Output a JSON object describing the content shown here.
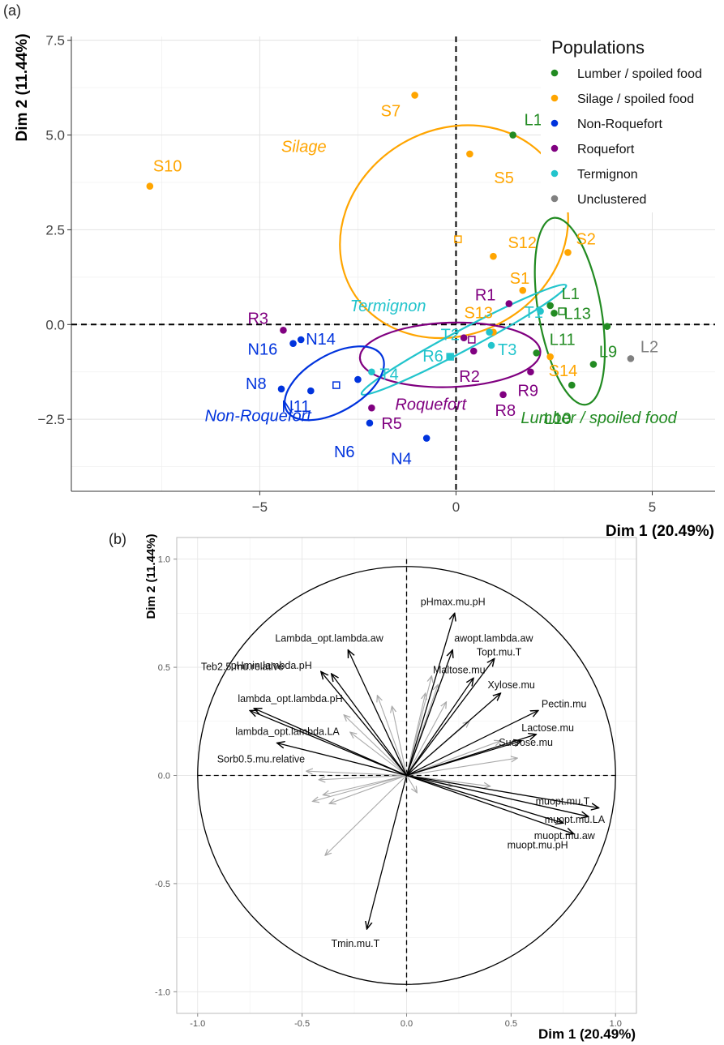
{
  "figure": {
    "label_a": "(a)",
    "label_b": "(b)"
  },
  "chart_data": [
    {
      "type": "scatter",
      "panel": "(a)",
      "xlabel": "Dim 1 (20.49%)",
      "ylabel": "Dim 2 (11.44%)",
      "xlim": [
        -9.8,
        6.6
      ],
      "ylim": [
        -4.4,
        7.6
      ],
      "xticks": [
        -5,
        0,
        5
      ],
      "xtick_labels": [
        "−5",
        "0",
        "5"
      ],
      "yticks": [
        -2.5,
        0.0,
        2.5,
        5.0,
        7.5
      ],
      "ytick_labels": [
        "−2.5",
        "0.0",
        "2.5",
        "5.0",
        "7.5"
      ],
      "grid": true,
      "legend": {
        "title": "Populations",
        "placement": "top-right",
        "entries": [
          {
            "label": "Lumber / spoiled food",
            "color": "#228B22"
          },
          {
            "label": "Silage / spoiled food",
            "color": "#FFA500"
          },
          {
            "label": "Non-Roquefort",
            "color": "#0033DD"
          },
          {
            "label": "Roquefort",
            "color": "#800080"
          },
          {
            "label": "Termignon",
            "color": "#22C4CC"
          },
          {
            "label": "Unclustered",
            "color": "#808080"
          }
        ]
      },
      "series": [
        {
          "name": "Lumber / spoiled food",
          "color": "#228B22",
          "points": [
            {
              "label": "L1",
              "x": 1.45,
              "y": 5.0
            },
            {
              "label": "L1",
              "x": 2.4,
              "y": 0.5
            },
            {
              "label": "L13",
              "x": 2.5,
              "y": 0.3
            },
            {
              "label": "L9",
              "x": 3.85,
              "y": -0.05
            },
            {
              "label": "L11",
              "x": 2.05,
              "y": -0.75
            },
            {
              "label": "",
              "x": 3.5,
              "y": -1.05
            },
            {
              "label": "L10",
              "x": 2.95,
              "y": -1.6
            }
          ]
        },
        {
          "name": "Silage / spoiled food",
          "color": "#FFA500",
          "points": [
            {
              "label": "S7",
              "x": -1.05,
              "y": 6.05
            },
            {
              "label": "S5",
              "x": 0.35,
              "y": 4.5
            },
            {
              "label": "S10",
              "x": -7.8,
              "y": 3.65
            },
            {
              "label": "S12",
              "x": 0.95,
              "y": 1.8
            },
            {
              "label": "S2",
              "x": 2.85,
              "y": 1.9
            },
            {
              "label": "S1",
              "x": 1.7,
              "y": 0.9
            },
            {
              "label": "S13",
              "x": 0.95,
              "y": -0.2
            },
            {
              "label": "S14",
              "x": 2.4,
              "y": -0.85
            }
          ]
        },
        {
          "name": "Non-Roquefort",
          "color": "#0033DD",
          "points": [
            {
              "label": "N14",
              "x": -3.95,
              "y": -0.4
            },
            {
              "label": "N16",
              "x": -4.15,
              "y": -0.5
            },
            {
              "label": "",
              "x": -2.5,
              "y": -1.45
            },
            {
              "label": "N8",
              "x": -4.45,
              "y": -1.7
            },
            {
              "label": "N11",
              "x": -3.7,
              "y": -1.75
            },
            {
              "label": "N6",
              "x": -2.2,
              "y": -2.6
            },
            {
              "label": "N4",
              "x": -0.75,
              "y": -3.0
            }
          ]
        },
        {
          "name": "Roquefort",
          "color": "#800080",
          "points": [
            {
              "label": "R3",
              "x": -4.4,
              "y": -0.15
            },
            {
              "label": "R1",
              "x": 1.35,
              "y": 0.55
            },
            {
              "label": "",
              "x": 0.2,
              "y": -0.35
            },
            {
              "label": "R2",
              "x": 0.45,
              "y": -0.7
            },
            {
              "label": "R9",
              "x": 1.9,
              "y": -1.25
            },
            {
              "label": "R8",
              "x": 1.2,
              "y": -1.85
            },
            {
              "label": "R5",
              "x": -2.15,
              "y": -2.2
            }
          ]
        },
        {
          "name": "Termignon",
          "color": "#22C4CC",
          "points": [
            {
              "label": "T1",
              "x": 2.15,
              "y": 0.35
            },
            {
              "label": "T2",
              "x": 0.85,
              "y": -0.2
            },
            {
              "label": "T3",
              "x": 0.9,
              "y": -0.55
            },
            {
              "label": "R6",
              "x": -0.15,
              "y": -0.85
            },
            {
              "label": "T4",
              "x": -2.15,
              "y": -1.25
            }
          ]
        },
        {
          "name": "Unclustered",
          "color": "#808080",
          "points": [
            {
              "label": "L2",
              "x": 4.45,
              "y": -0.9
            }
          ]
        }
      ],
      "centroids": [
        {
          "group": "Silage / spoiled food",
          "x": 0.05,
          "y": 2.25
        },
        {
          "group": "Lumber / spoiled food",
          "x": 2.7,
          "y": 0.35
        },
        {
          "group": "Roquefort",
          "x": 0.4,
          "y": -0.4
        },
        {
          "group": "Termignon",
          "x": -0.15,
          "y": -0.85
        },
        {
          "group": "Non-Roquefort",
          "x": -3.05,
          "y": -1.6
        }
      ],
      "ellipses": [
        {
          "label": "Silage",
          "color": "#FFA500",
          "cx": -0.05,
          "cy": 2.45,
          "rx": 3.0,
          "ry": 2.7,
          "angle": -30
        },
        {
          "label": "Lumber / spoiled food",
          "color": "#228B22",
          "cx": 2.9,
          "cy": 0.35,
          "rx": 0.8,
          "ry": 2.5,
          "angle": -10
        },
        {
          "label": "Roquefort",
          "color": "#800080",
          "cx": -0.15,
          "cy": -0.8,
          "rx": 2.3,
          "ry": 0.85,
          "angle": -2
        },
        {
          "label": "Termignon",
          "color": "#22C4CC",
          "cx": 0.2,
          "cy": -0.4,
          "rx": 2.95,
          "ry": 0.27,
          "angle": -28
        },
        {
          "label": "Non-Roquefort",
          "color": "#0033DD",
          "cx": -3.1,
          "cy": -1.55,
          "rx": 1.4,
          "ry": 0.75,
          "angle": -30
        }
      ],
      "group_labels": [
        {
          "text": "Silage",
          "color": "#FFA500",
          "x": -4.45,
          "y": 4.55
        },
        {
          "text": "Termignon",
          "color": "#22C4CC",
          "x": -2.7,
          "y": 0.35
        },
        {
          "text": "Roquefort",
          "color": "#800080",
          "x": -1.55,
          "y": -2.25
        },
        {
          "text": "Non-Roquefort",
          "color": "#0033DD",
          "x": -6.4,
          "y": -2.55
        },
        {
          "text": "Lumber / spoiled food",
          "color": "#228B22",
          "x": 1.65,
          "y": -2.6
        }
      ]
    },
    {
      "type": "correlation-circle",
      "panel": "(b)",
      "xlabel": "Dim 1 (20.49%)",
      "ylabel": "Dim 2 (11.44%)",
      "xlim": [
        -1.1,
        1.1
      ],
      "ylim": [
        -1.1,
        1.1
      ],
      "xticks": [
        -1.0,
        -0.5,
        0.0,
        0.5,
        1.0
      ],
      "xtick_labels": [
        "-1.0",
        "-0.5",
        "0.0",
        "0.5",
        "1.0"
      ],
      "yticks": [
        -1.0,
        -0.5,
        0.0,
        0.5,
        1.0
      ],
      "ytick_labels": [
        "-1.0",
        "-0.5",
        "0.0",
        "0.5",
        "1.0"
      ],
      "grid": true,
      "vectors": [
        {
          "label": "pHmax.mu.pH",
          "x": 0.23,
          "y": 0.75
        },
        {
          "label": "awopt.lambda.aw",
          "x": 0.22,
          "y": 0.58
        },
        {
          "label": "Topt.mu.T",
          "x": 0.42,
          "y": 0.54
        },
        {
          "label": "Maltose.mu",
          "x": 0.32,
          "y": 0.45
        },
        {
          "label": "Xylose.mu",
          "x": 0.45,
          "y": 0.38
        },
        {
          "label": "Pectin.mu",
          "x": 0.63,
          "y": 0.3
        },
        {
          "label": "Lactose.mu",
          "x": 0.62,
          "y": 0.19
        },
        {
          "label": "Sucrose.mu",
          "x": 0.55,
          "y": 0.16
        },
        {
          "label": "muopt.mu.T",
          "x": 0.92,
          "y": -0.15
        },
        {
          "label": "muopt.mu.LA",
          "x": 0.87,
          "y": -0.19
        },
        {
          "label": "muopt.mu.aw",
          "x": 0.75,
          "y": -0.22
        },
        {
          "label": "muopt.mu.pH",
          "x": 0.8,
          "y": -0.27
        },
        {
          "label": "Tmin.mu.T",
          "x": -0.19,
          "y": -0.71
        },
        {
          "label": "Sorb0.5.mu.relative",
          "x": -0.62,
          "y": 0.15
        },
        {
          "label": "lambda_opt.lambda.LA",
          "x": -0.75,
          "y": 0.3
        },
        {
          "label": "lambda_opt.lambda.pH",
          "x": -0.73,
          "y": 0.31
        },
        {
          "label": "Teb2.5.mu.relative",
          "x": -0.41,
          "y": 0.48
        },
        {
          "label": "pHmin.lambda.pH",
          "x": -0.36,
          "y": 0.47
        },
        {
          "label": "Lambda_opt.lambda.aw",
          "x": -0.28,
          "y": 0.58
        }
      ],
      "supplementary_vectors": [
        {
          "x": -0.14,
          "y": 0.37
        },
        {
          "x": -0.07,
          "y": 0.32
        },
        {
          "x": 0.09,
          "y": 0.38
        },
        {
          "x": 0.15,
          "y": 0.42
        },
        {
          "x": 0.12,
          "y": 0.46
        },
        {
          "x": 0.19,
          "y": 0.34
        },
        {
          "x": 0.3,
          "y": 0.25
        },
        {
          "x": 0.45,
          "y": 0.16
        },
        {
          "x": 0.53,
          "y": 0.08
        },
        {
          "x": 0.4,
          "y": -0.05
        },
        {
          "x": 0.22,
          "y": -0.05
        },
        {
          "x": 0.05,
          "y": -0.08
        },
        {
          "x": -0.3,
          "y": 0.28
        },
        {
          "x": -0.27,
          "y": 0.2
        },
        {
          "x": -0.48,
          "y": 0.02
        },
        {
          "x": -0.42,
          "y": -0.02
        },
        {
          "x": -0.4,
          "y": -0.09
        },
        {
          "x": -0.45,
          "y": -0.12
        },
        {
          "x": -0.37,
          "y": -0.13
        },
        {
          "x": -0.39,
          "y": -0.37
        }
      ]
    }
  ]
}
